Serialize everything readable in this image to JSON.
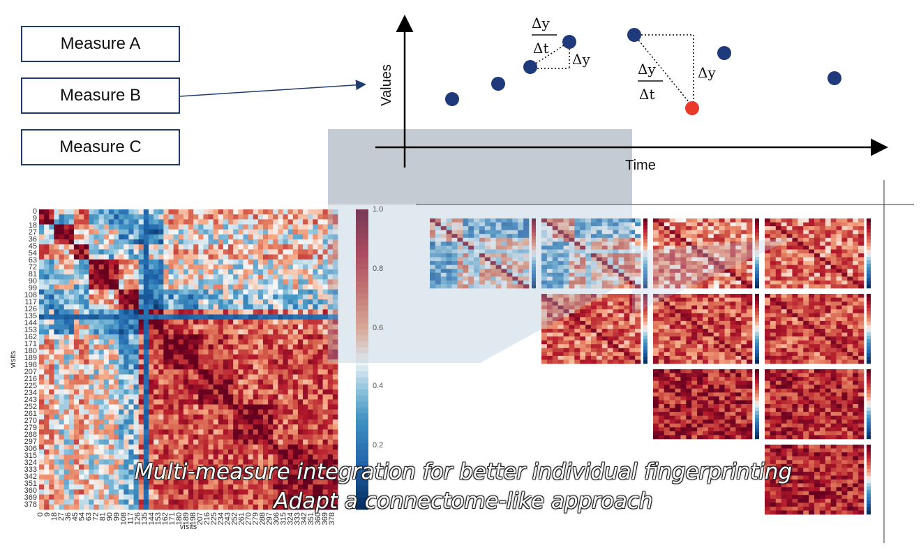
{
  "measures": {
    "a": "Measure A",
    "b": "Measure B",
    "c": "Measure C"
  },
  "plot": {
    "y_label": "Values",
    "x_label": "Time",
    "delta_y": "Δy",
    "delta_t": "Δt",
    "point_color": "#1f3a7a",
    "highlight_color": "#e8392a"
  },
  "heatmap": {
    "x_label": "visits",
    "y_label": "visits",
    "ticks": [
      "0",
      "9",
      "18",
      "27",
      "36",
      "45",
      "54",
      "63",
      "72",
      "81",
      "90",
      "99",
      "108",
      "117",
      "126",
      "135",
      "144",
      "153",
      "162",
      "171",
      "180",
      "189",
      "198",
      "207",
      "216",
      "225",
      "234",
      "243",
      "252",
      "261",
      "270",
      "279",
      "288",
      "297",
      "306",
      "315",
      "324",
      "333",
      "342",
      "351",
      "360",
      "369",
      "378"
    ],
    "colorbar_ticks": [
      "1.0",
      "0.8",
      "0.6",
      "0.4",
      "0.2"
    ]
  },
  "caption": {
    "line1": "Multi-measure integration for better individual fingerprinting",
    "line2": "Adapt a connectome-like approach"
  }
}
